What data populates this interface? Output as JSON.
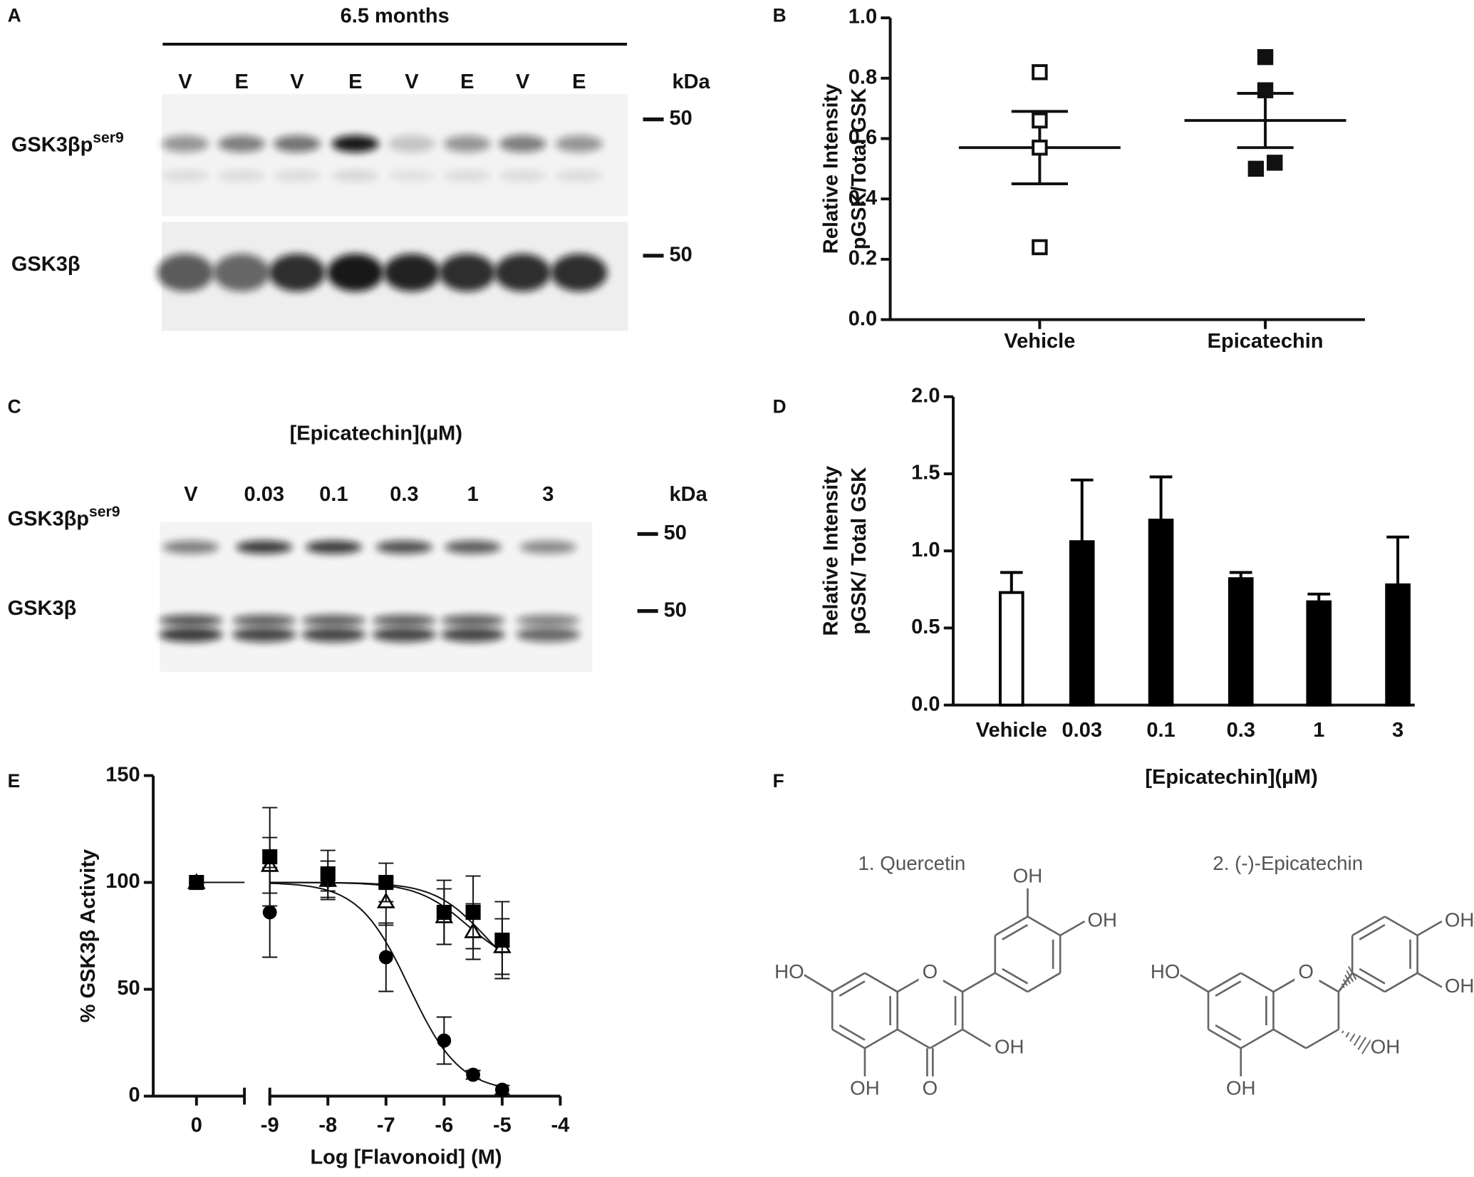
{
  "panel_labels": [
    "A",
    "B",
    "C",
    "D",
    "E",
    "F"
  ],
  "blot_a": {
    "title": "6.5 months",
    "lanes": [
      "V",
      "E",
      "V",
      "E",
      "V",
      "E",
      "V",
      "E"
    ],
    "kda": "kDa",
    "rows": [
      {
        "name": "GSK3βp",
        "superscript": "ser9",
        "marker": "50"
      },
      {
        "name": "GSK3β",
        "marker": "50"
      }
    ]
  },
  "blot_c": {
    "title": "[Epicatechin](µM)",
    "lanes": [
      "V",
      "0.03",
      "0.1",
      "0.3",
      "1",
      "3"
    ],
    "kda": "kDa",
    "rows": [
      {
        "name": "GSK3βp",
        "superscript": "ser9",
        "marker": "50"
      },
      {
        "name": "GSK3β",
        "marker": "50"
      }
    ]
  },
  "chart_data": [
    {
      "type": "dot",
      "ylabel": [
        "Relative Intensity",
        "pGSK/Total GSK"
      ],
      "categories": [
        "Vehicle",
        "Epicatechin"
      ],
      "points": [
        [
          0.82,
          0.66,
          0.57,
          0.24
        ],
        [
          0.87,
          0.76,
          0.5,
          0.52
        ]
      ],
      "markers": [
        "open",
        "filled"
      ],
      "means": [
        0.57,
        0.66
      ],
      "errors": [
        0.12,
        0.09
      ],
      "color": "#111",
      "ylim": [
        0,
        1.0
      ],
      "yticks": [
        {
          "value": 0,
          "label": "0.0"
        },
        0.2,
        0.4,
        0.6,
        0.8,
        {
          "value": 1.0,
          "label": "1.0"
        }
      ]
    },
    {
      "type": "bar",
      "ylabel": [
        "Relative Intensity",
        "pGSK/ Total GSK"
      ],
      "xlabel": "[Epicatechin](µM)",
      "categories": [
        "Vehicle",
        "0.03",
        "0.1",
        "0.3",
        "1",
        "3"
      ],
      "values": [
        0.73,
        1.06,
        1.2,
        0.82,
        0.67,
        0.78
      ],
      "errors": [
        0.13,
        0.4,
        0.28,
        0.04,
        0.05,
        0.31
      ],
      "colors": [
        "#ffffff",
        "#000000",
        "#000000",
        "#000000",
        "#000000",
        "#000000"
      ],
      "ylim": [
        0,
        2.0
      ],
      "yticks": [
        {
          "value": 0,
          "label": "0.0"
        },
        0.5,
        {
          "value": 1.0,
          "label": "1.0"
        },
        1.5,
        {
          "value": 2.0,
          "label": "2.0"
        }
      ]
    },
    {
      "type": "scatter",
      "ylabel": "% GSK3β Activity",
      "xlabel": "Log [Flavonoid] (M)",
      "x": [
        0,
        -9,
        -8,
        -7,
        -6,
        -5.5,
        -5
      ],
      "series": [
        {
          "marker": "triangle",
          "color": "#ffffff",
          "values": [
            100,
            108,
            101,
            91,
            84,
            77,
            70
          ],
          "errors": [
            0,
            13,
            9,
            11,
            13,
            13,
            13
          ],
          "fit": {
            "top": 100,
            "bottom": 60,
            "log_ec50": -5.6,
            "hill": 1
          }
        },
        {
          "marker": "circle",
          "color": "#000000",
          "values": [
            100,
            86,
            101,
            65,
            26,
            10,
            3
          ],
          "errors": [
            0,
            21,
            5,
            16,
            11,
            2,
            2
          ],
          "fit": {
            "top": 100,
            "bottom": 2,
            "log_ec50": -6.6,
            "hill": 1
          }
        },
        {
          "marker": "square",
          "color": "#000000",
          "values": [
            100,
            112,
            104,
            100,
            86,
            86,
            73
          ],
          "errors": [
            0,
            23,
            11,
            9,
            15,
            17,
            18
          ],
          "fit": {
            "top": 100,
            "bottom": 50,
            "log_ec50": -5.3,
            "hill": 1
          }
        }
      ],
      "xlim": [
        -9,
        -4
      ],
      "xlim_break": [
        -1,
        1
      ],
      "xticks": [
        0,
        -9,
        -8,
        -7,
        -6,
        -5,
        -4
      ],
      "ylim": [
        0,
        150
      ],
      "yticks": [
        0,
        50,
        100,
        150
      ]
    }
  ],
  "structures": [
    {
      "name": "1. Quercetin",
      "labels": [
        "HO",
        "OH",
        "O",
        "O",
        "OH",
        "OH",
        "OH"
      ]
    },
    {
      "name": "2. (-)-Epicatechin",
      "labels": [
        "HO",
        "OH",
        "O",
        "OH",
        "OH",
        "OH"
      ]
    }
  ]
}
